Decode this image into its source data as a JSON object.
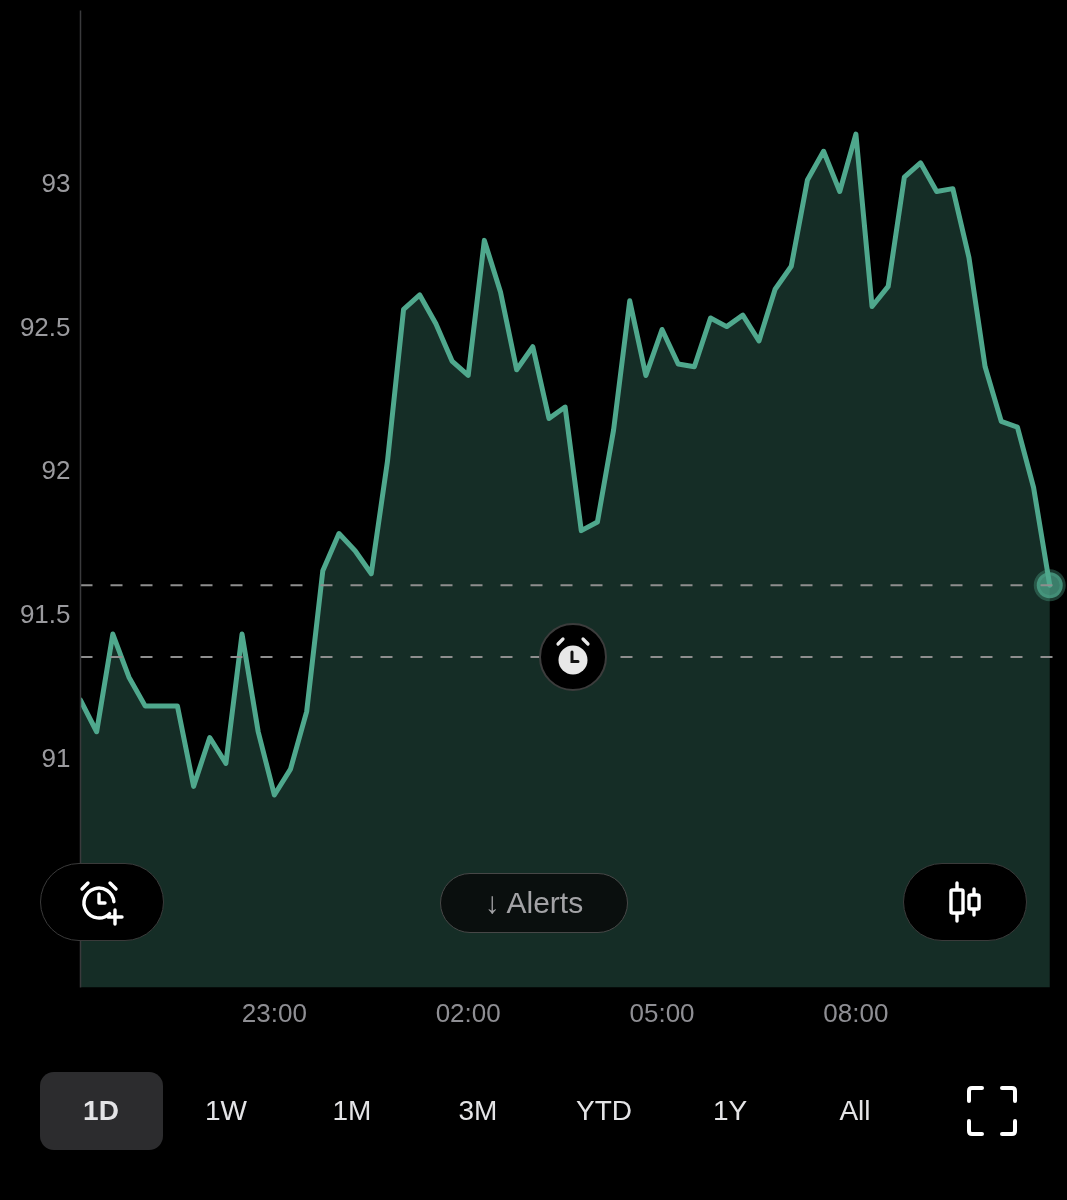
{
  "chart_data": {
    "type": "area",
    "categories": [
      null,
      null,
      null,
      null,
      null,
      null,
      null,
      null,
      null,
      null,
      null,
      null,
      "23:00",
      null,
      null,
      null,
      null,
      null,
      null,
      null,
      null,
      null,
      null,
      null,
      "02:00",
      null,
      null,
      null,
      null,
      null,
      null,
      null,
      null,
      null,
      null,
      null,
      "05:00",
      null,
      null,
      null,
      null,
      null,
      null,
      null,
      null,
      null,
      null,
      null,
      "08:00",
      null,
      null,
      null,
      null,
      null,
      null,
      null,
      null,
      null,
      null,
      null,
      null
    ],
    "series": [
      {
        "color": "#4fa88d",
        "values": [
          91.2,
          91.09,
          91.43,
          91.28,
          91.18,
          91.18,
          91.18,
          90.9,
          91.07,
          90.98,
          91.43,
          91.09,
          90.87,
          90.96,
          91.16,
          91.65,
          91.78,
          91.72,
          91.64,
          92.03,
          92.56,
          92.61,
          92.51,
          92.38,
          92.33,
          92.8,
          92.62,
          92.35,
          92.43,
          92.18,
          92.22,
          91.79,
          91.82,
          92.14,
          92.59,
          92.33,
          92.49,
          92.37,
          92.36,
          92.53,
          92.5,
          92.54,
          92.45,
          92.63,
          92.71,
          93.01,
          93.11,
          92.97,
          93.17,
          92.57,
          92.64,
          93.02,
          93.07,
          92.97,
          92.98,
          92.74,
          92.36,
          92.17,
          92.15,
          91.94,
          91.6
        ]
      },
      {
        "type": "scatter",
        "color": "#4fa88d",
        "marker": "circle",
        "values": [
          null,
          null,
          null,
          null,
          null,
          null,
          null,
          null,
          null,
          null,
          null,
          null,
          null,
          null,
          null,
          null,
          null,
          null,
          null,
          null,
          null,
          null,
          null,
          null,
          null,
          null,
          null,
          null,
          null,
          null,
          null,
          null,
          null,
          null,
          null,
          null,
          null,
          null,
          null,
          null,
          null,
          null,
          null,
          null,
          null,
          null,
          null,
          null,
          null,
          null,
          null,
          null,
          null,
          null,
          null,
          null,
          null,
          null,
          null,
          null,
          91.6
        ]
      }
    ],
    "ylim": [
      90.2,
      93.6
    ],
    "yticks": [
      91,
      91.5,
      92,
      92.5,
      93
    ],
    "grid": false,
    "ref_lines": [
      {
        "axis": "y",
        "value": 91.6,
        "color": "#8e8e8e",
        "line_style": "dashed"
      },
      {
        "axis": "y",
        "value": 91.35,
        "color": "#8e8e8e",
        "line_style": "dashed"
      }
    ],
    "annotations": [
      "↓ Alerts",
      "1D",
      "1W",
      "1M",
      "3M",
      "YTD",
      "1Y",
      "All"
    ]
  }
}
